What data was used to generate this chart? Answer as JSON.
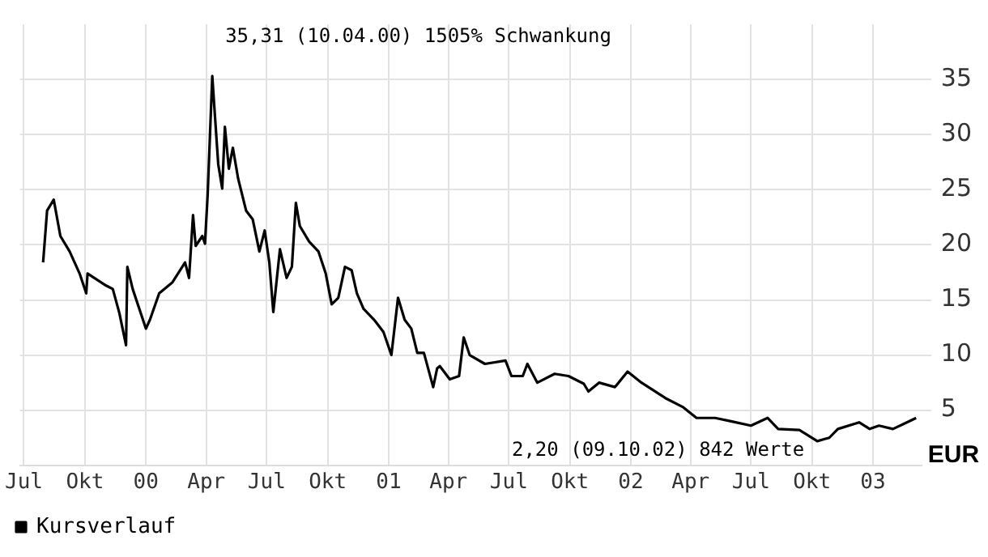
{
  "chart_data": {
    "type": "line",
    "ylabel": "EUR",
    "x": [
      "1999-07-30",
      "1999-08-05",
      "1999-08-15",
      "1999-08-25",
      "1999-09-08",
      "1999-09-23",
      "1999-10-03",
      "1999-10-05",
      "1999-11-02",
      "1999-11-12",
      "1999-11-22",
      "1999-12-02",
      "1999-12-04",
      "1999-12-12",
      "2000-01-01",
      "2000-01-07",
      "2000-01-21",
      "2000-02-10",
      "2000-02-29",
      "2000-03-06",
      "2000-03-12",
      "2000-03-16",
      "2000-03-26",
      "2000-03-30",
      "2000-04-03",
      "2000-04-10",
      "2000-04-13",
      "2000-04-19",
      "2000-04-25",
      "2000-04-29",
      "2000-05-05",
      "2000-05-11",
      "2000-05-19",
      "2000-05-31",
      "2000-06-10",
      "2000-06-20",
      "2000-06-28",
      "2000-07-05",
      "2000-07-11",
      "2000-07-21",
      "2000-07-31",
      "2000-08-08",
      "2000-08-14",
      "2000-08-20",
      "2000-09-03",
      "2000-09-17",
      "2000-09-28",
      "2000-10-07",
      "2000-10-17",
      "2000-10-27",
      "2000-11-06",
      "2000-11-14",
      "2000-11-24",
      "2000-12-10",
      "2000-12-24",
      "2001-01-05",
      "2001-01-15",
      "2001-01-25",
      "2001-02-04",
      "2001-02-13",
      "2001-02-23",
      "2001-03-09",
      "2001-03-15",
      "2001-03-19",
      "2001-04-03",
      "2001-04-17",
      "2001-04-24",
      "2001-05-03",
      "2001-05-26",
      "2001-06-26",
      "2001-07-05",
      "2001-07-22",
      "2001-07-29",
      "2001-08-13",
      "2001-09-08",
      "2001-09-29",
      "2001-10-22",
      "2001-10-29",
      "2001-11-14",
      "2001-12-08",
      "2001-12-27",
      "2002-01-17",
      "2002-02-22",
      "2002-03-20",
      "2002-04-10",
      "2002-05-08",
      "2002-06-01",
      "2002-07-01",
      "2002-07-26",
      "2002-08-11",
      "2002-09-12",
      "2002-10-09",
      "2002-10-27",
      "2002-11-09",
      "2002-12-11",
      "2002-12-27",
      "2003-01-10",
      "2003-01-31",
      "2003-02-21",
      "2003-03-07"
    ],
    "series": [
      {
        "name": "Kursverlauf",
        "color": "#000000",
        "values": [
          18.4,
          23.1,
          24.1,
          20.8,
          19.4,
          17.4,
          15.6,
          17.4,
          16.3,
          16.0,
          13.8,
          10.9,
          18.0,
          16.0,
          12.4,
          13.2,
          15.6,
          16.6,
          18.4,
          17.0,
          22.7,
          19.9,
          20.8,
          20.1,
          24.5,
          35.31,
          32.6,
          27.3,
          25.1,
          30.7,
          26.9,
          28.8,
          26.0,
          23.1,
          22.3,
          19.4,
          21.3,
          18.4,
          13.9,
          19.6,
          17.0,
          18.0,
          23.8,
          21.7,
          20.3,
          19.4,
          17.4,
          14.6,
          15.2,
          18.0,
          17.7,
          15.6,
          14.2,
          13.2,
          12.1,
          10.0,
          15.2,
          13.2,
          12.4,
          10.2,
          10.2,
          7.1,
          8.8,
          9.0,
          7.8,
          8.1,
          11.6,
          10.0,
          9.2,
          9.5,
          8.1,
          8.1,
          9.2,
          7.5,
          8.3,
          8.1,
          7.4,
          6.7,
          7.5,
          7.1,
          8.5,
          7.5,
          6.1,
          5.3,
          4.3,
          4.3,
          4.0,
          3.6,
          4.3,
          3.3,
          3.2,
          2.2,
          2.5,
          3.3,
          3.9,
          3.3,
          3.6,
          3.3,
          3.9,
          4.3
        ]
      }
    ],
    "xlim": [
      "1999-06-25",
      "2003-03-15"
    ],
    "xticks": [
      {
        "value": "1999-07-01",
        "label": "Jul"
      },
      {
        "value": "1999-10-01",
        "label": "Okt"
      },
      {
        "value": "2000-01-01",
        "label": "00"
      },
      {
        "value": "2000-04-01",
        "label": "Apr"
      },
      {
        "value": "2000-07-01",
        "label": "Jul"
      },
      {
        "value": "2000-10-01",
        "label": "Okt"
      },
      {
        "value": "2001-01-01",
        "label": "01"
      },
      {
        "value": "2001-04-01",
        "label": "Apr"
      },
      {
        "value": "2001-07-01",
        "label": "Jul"
      },
      {
        "value": "2001-10-01",
        "label": "Okt"
      },
      {
        "value": "2002-01-01",
        "label": "02"
      },
      {
        "value": "2002-04-01",
        "label": "Apr"
      },
      {
        "value": "2002-07-01",
        "label": "Jul"
      },
      {
        "value": "2002-10-01",
        "label": "Okt"
      },
      {
        "value": "2003-01-01",
        "label": "03"
      }
    ],
    "ylim": [
      0,
      40
    ],
    "yticks": [
      5,
      10,
      15,
      20,
      25,
      30,
      35
    ],
    "grid": true,
    "legend": "bottom left",
    "marker": "none",
    "line_style": "solid",
    "annotations": [
      {
        "text": "35,31 (10.04.00) 1505% Schwankung",
        "x": "2000-04-10",
        "y": 35.31
      },
      {
        "text": "2,20 (09.10.02) 842 Werte",
        "x": "2002-10-09",
        "y": 2.2
      }
    ]
  }
}
